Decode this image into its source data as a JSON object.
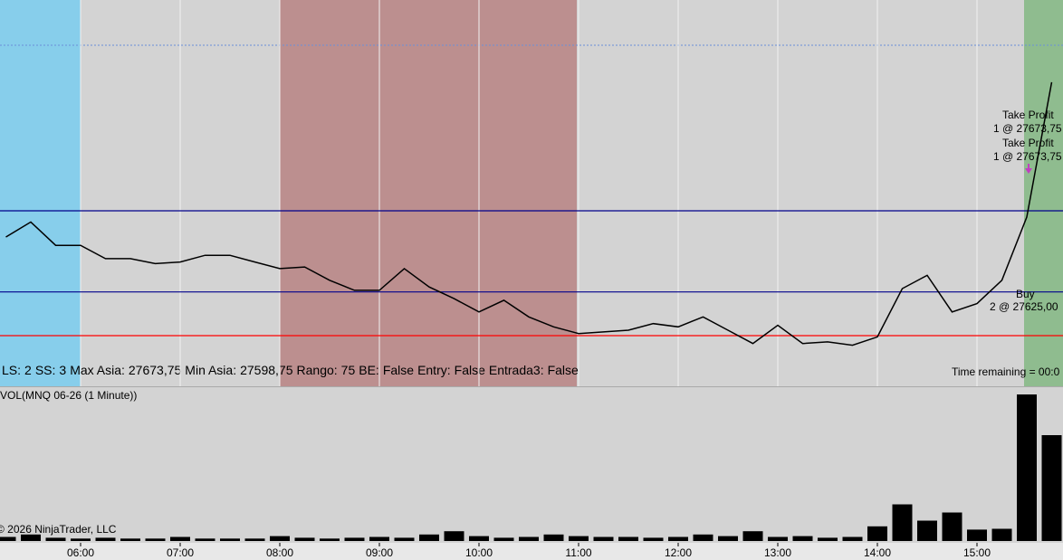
{
  "chart_data": {
    "type": "line",
    "x": [
      "05:15",
      "05:30",
      "05:45",
      "06:00",
      "06:15",
      "06:30",
      "06:45",
      "07:00",
      "07:15",
      "07:30",
      "07:45",
      "08:00",
      "08:15",
      "08:30",
      "08:45",
      "09:00",
      "09:15",
      "09:30",
      "09:45",
      "10:00",
      "10:15",
      "10:30",
      "10:45",
      "11:00",
      "11:15",
      "11:30",
      "11:45",
      "12:00",
      "12:15",
      "12:30",
      "12:45",
      "13:00",
      "13:15",
      "13:30",
      "13:45",
      "14:00",
      "14:15",
      "14:30",
      "14:45",
      "15:00",
      "15:15",
      "15:30",
      "15:45"
    ],
    "values": [
      27658,
      27667,
      27653,
      27653,
      27645,
      27645,
      27642,
      27643,
      27647,
      27647,
      27643,
      27639,
      27640,
      27632,
      27626,
      27626,
      27639,
      27628,
      27621,
      27613,
      27620,
      27610,
      27604,
      27600,
      27601,
      27602,
      27606,
      27604,
      27610,
      27602,
      27594,
      27605,
      27594,
      27595,
      27593,
      27598,
      27627,
      27635,
      27613,
      27618,
      27632,
      27670,
      27751
    ],
    "color": "#000000",
    "xticks": [
      "06:00",
      "07:00",
      "08:00",
      "09:00",
      "10:00",
      "11:00",
      "12:00",
      "13:00",
      "14:00",
      "15:00"
    ],
    "volume": {
      "label": "VOL(MNQ 06-26 (1 Minute))",
      "color": "#000000",
      "values": [
        5,
        8,
        4,
        3,
        4,
        3,
        3,
        5,
        3,
        3,
        3,
        6,
        4,
        3,
        4,
        5,
        4,
        8,
        12,
        6,
        4,
        5,
        8,
        6,
        5,
        5,
        4,
        5,
        8,
        6,
        12,
        5,
        6,
        4,
        5,
        18,
        45,
        25,
        35,
        14,
        15,
        180,
        130
      ]
    }
  },
  "status": [
    {
      "key": "LS:",
      "text": "2"
    },
    {
      "key": "SS:",
      "text": "3"
    },
    {
      "key": "Max Asia:",
      "text": "27673,75",
      "value": 27673.75
    },
    {
      "key": "Min Asia:",
      "text": "27598,75",
      "value": 27598.75
    },
    {
      "key": "Rango:",
      "text": "75"
    },
    {
      "key": "BE:",
      "text": "False"
    },
    {
      "key": "Entry:",
      "text": "False"
    },
    {
      "key": "Entrada3:",
      "text": "False"
    }
  ],
  "orders": [
    {
      "title": "Take Profit",
      "text": "1 @ 27673,75",
      "value": 27673.75
    },
    {
      "title": "Take Profit",
      "text": "1 @ 27673,75",
      "value": 27673.75
    },
    {
      "title": "Buy",
      "text": "2 @ 27625,00",
      "value": 27625
    }
  ],
  "time_remaining": "Time remaining = 00:0",
  "copyright": "© 2026 NinjaTrader, LLC"
}
